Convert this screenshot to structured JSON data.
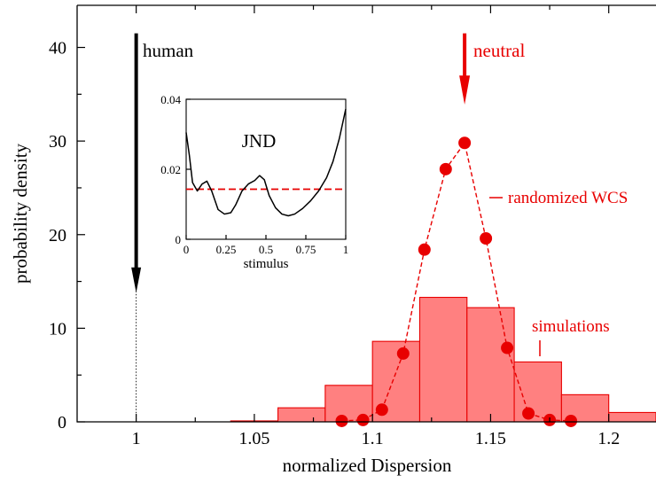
{
  "chart_data": {
    "type": "bar",
    "main": {
      "xlabel": "normalized Dispersion",
      "ylabel": "probability density",
      "xlim": [
        0.975,
        1.22
      ],
      "ylim": [
        0,
        44.5
      ],
      "x_ticks": [
        {
          "value": 1.0,
          "label": "1"
        },
        {
          "value": 1.05,
          "label": "1.05"
        },
        {
          "value": 1.1,
          "label": "1.1"
        },
        {
          "value": 1.15,
          "label": "1.15"
        },
        {
          "value": 1.2,
          "label": "1.2"
        }
      ],
      "y_ticks": [
        {
          "value": 0,
          "label": "0"
        },
        {
          "value": 10,
          "label": "10"
        },
        {
          "value": 20,
          "label": "20"
        },
        {
          "value": 30,
          "label": "30"
        },
        {
          "value": 40,
          "label": "40"
        }
      ],
      "histogram": {
        "name": "simulations",
        "color": "#ff8080",
        "bins": [
          {
            "x0": 1.04,
            "x1": 1.06,
            "value": 0.1
          },
          {
            "x0": 1.06,
            "x1": 1.08,
            "value": 1.5
          },
          {
            "x0": 1.08,
            "x1": 1.1,
            "value": 3.9
          },
          {
            "x0": 1.1,
            "x1": 1.12,
            "value": 8.6
          },
          {
            "x0": 1.12,
            "x1": 1.14,
            "value": 13.3
          },
          {
            "x0": 1.14,
            "x1": 1.16,
            "value": 12.2
          },
          {
            "x0": 1.16,
            "x1": 1.18,
            "value": 6.4
          },
          {
            "x0": 1.18,
            "x1": 1.2,
            "value": 2.9
          },
          {
            "x0": 1.2,
            "x1": 1.22,
            "value": 1.0
          }
        ]
      },
      "randomized_series": {
        "name": "randomized WCS",
        "color": "#e80000",
        "points": [
          [
            1.087,
            0.1
          ],
          [
            1.096,
            0.2
          ],
          [
            1.104,
            1.3
          ],
          [
            1.113,
            7.3
          ],
          [
            1.122,
            18.4
          ],
          [
            1.131,
            27.0
          ],
          [
            1.139,
            29.8
          ],
          [
            1.148,
            19.6
          ],
          [
            1.157,
            7.9
          ],
          [
            1.166,
            0.9
          ],
          [
            1.175,
            0.2
          ],
          [
            1.184,
            0.1
          ]
        ]
      },
      "annotations": {
        "human": {
          "label": "human",
          "x": 1.0
        },
        "neutral": {
          "label": "neutral",
          "x": 1.139,
          "color": "#e80000"
        },
        "randomized_label": "randomized WCS",
        "simulations_label": "simulations"
      }
    },
    "inset": {
      "title": "JND",
      "xlabel": "stimulus",
      "xlim": [
        0,
        1
      ],
      "ylim": [
        0,
        0.04
      ],
      "x_ticks": [
        {
          "value": 0,
          "label": "0"
        },
        {
          "value": 0.25,
          "label": "0.25"
        },
        {
          "value": 0.5,
          "label": "0.5"
        },
        {
          "value": 0.75,
          "label": "0.75"
        },
        {
          "value": 1,
          "label": "1"
        }
      ],
      "y_ticks": [
        {
          "value": 0,
          "label": "0"
        },
        {
          "value": 0.02,
          "label": "0.02"
        },
        {
          "value": 0.04,
          "label": "0.04"
        }
      ],
      "jnd_curve": [
        [
          0.0,
          0.0305
        ],
        [
          0.02,
          0.024
        ],
        [
          0.04,
          0.0162
        ],
        [
          0.07,
          0.0138
        ],
        [
          0.1,
          0.0158
        ],
        [
          0.13,
          0.0166
        ],
        [
          0.16,
          0.0138
        ],
        [
          0.2,
          0.0085
        ],
        [
          0.24,
          0.0072
        ],
        [
          0.28,
          0.0076
        ],
        [
          0.31,
          0.0098
        ],
        [
          0.35,
          0.0138
        ],
        [
          0.39,
          0.0158
        ],
        [
          0.43,
          0.0168
        ],
        [
          0.46,
          0.0182
        ],
        [
          0.49,
          0.017
        ],
        [
          0.52,
          0.0125
        ],
        [
          0.56,
          0.009
        ],
        [
          0.6,
          0.0072
        ],
        [
          0.64,
          0.0067
        ],
        [
          0.68,
          0.0072
        ],
        [
          0.73,
          0.0088
        ],
        [
          0.78,
          0.011
        ],
        [
          0.83,
          0.0138
        ],
        [
          0.88,
          0.0176
        ],
        [
          0.92,
          0.0222
        ],
        [
          0.96,
          0.0288
        ],
        [
          1.0,
          0.0372
        ]
      ],
      "mean_line": {
        "y": 0.0143,
        "color": "#e80000"
      }
    }
  }
}
